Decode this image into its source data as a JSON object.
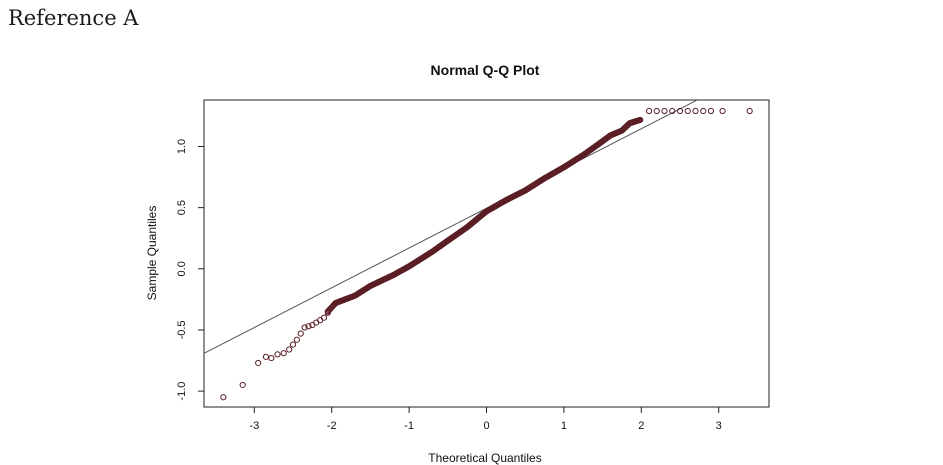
{
  "page": {
    "label": "Reference A"
  },
  "chart_data": {
    "type": "scatter",
    "title": "Normal Q-Q Plot",
    "xlabel": "Theoretical Quantiles",
    "ylabel": "Sample Quantiles",
    "xlim": [
      -3.65,
      3.65
    ],
    "ylim": [
      -1.13,
      1.38
    ],
    "x_ticks": [
      -3,
      -2,
      -1,
      0,
      1,
      2,
      3
    ],
    "y_ticks": [
      -1.0,
      -0.5,
      0.0,
      0.5,
      1.0
    ],
    "x_tick_labels": [
      "-3",
      "-2",
      "-1",
      "0",
      "1",
      "2",
      "3"
    ],
    "y_tick_labels": [
      "-1.0",
      "-0.5",
      "0.0",
      "0.5",
      "1.0"
    ],
    "grid": false,
    "reference_line": {
      "slope": 0.325,
      "intercept": 0.495
    },
    "point_color": "#5a1e24",
    "line_color": "#555555",
    "sparse_points": [
      {
        "x": -3.4,
        "y": -1.05
      },
      {
        "x": -3.15,
        "y": -0.95
      },
      {
        "x": -2.95,
        "y": -0.77
      },
      {
        "x": -2.85,
        "y": -0.72
      },
      {
        "x": -2.78,
        "y": -0.73
      },
      {
        "x": -2.7,
        "y": -0.7
      },
      {
        "x": -2.62,
        "y": -0.69
      },
      {
        "x": -2.55,
        "y": -0.66
      },
      {
        "x": -2.5,
        "y": -0.62
      },
      {
        "x": -2.45,
        "y": -0.58
      },
      {
        "x": -2.4,
        "y": -0.53
      },
      {
        "x": -2.35,
        "y": -0.48
      },
      {
        "x": -2.3,
        "y": -0.47
      },
      {
        "x": -2.25,
        "y": -0.46
      },
      {
        "x": -2.2,
        "y": -0.44
      },
      {
        "x": -2.15,
        "y": -0.42
      },
      {
        "x": -2.1,
        "y": -0.4
      },
      {
        "x": -2.05,
        "y": -0.36
      },
      {
        "x": 2.1,
        "y": 1.29
      },
      {
        "x": 2.2,
        "y": 1.29
      },
      {
        "x": 2.3,
        "y": 1.29
      },
      {
        "x": 2.4,
        "y": 1.29
      },
      {
        "x": 2.5,
        "y": 1.29
      },
      {
        "x": 2.6,
        "y": 1.29
      },
      {
        "x": 2.7,
        "y": 1.29
      },
      {
        "x": 2.8,
        "y": 1.29
      },
      {
        "x": 2.9,
        "y": 1.29
      },
      {
        "x": 3.05,
        "y": 1.29
      },
      {
        "x": 3.4,
        "y": 1.29
      }
    ],
    "dense_curve": [
      {
        "x": -2.05,
        "y": -0.35
      },
      {
        "x": -1.95,
        "y": -0.28
      },
      {
        "x": -1.7,
        "y": -0.22
      },
      {
        "x": -1.5,
        "y": -0.14
      },
      {
        "x": -1.2,
        "y": -0.05
      },
      {
        "x": -1.0,
        "y": 0.02
      },
      {
        "x": -0.7,
        "y": 0.14
      },
      {
        "x": -0.5,
        "y": 0.23
      },
      {
        "x": -0.25,
        "y": 0.34
      },
      {
        "x": 0.0,
        "y": 0.47
      },
      {
        "x": 0.25,
        "y": 0.56
      },
      {
        "x": 0.5,
        "y": 0.64
      },
      {
        "x": 0.75,
        "y": 0.74
      },
      {
        "x": 1.0,
        "y": 0.83
      },
      {
        "x": 1.25,
        "y": 0.93
      },
      {
        "x": 1.45,
        "y": 1.02
      },
      {
        "x": 1.6,
        "y": 1.09
      },
      {
        "x": 1.75,
        "y": 1.13
      },
      {
        "x": 1.85,
        "y": 1.19
      },
      {
        "x": 2.0,
        "y": 1.22
      }
    ]
  }
}
